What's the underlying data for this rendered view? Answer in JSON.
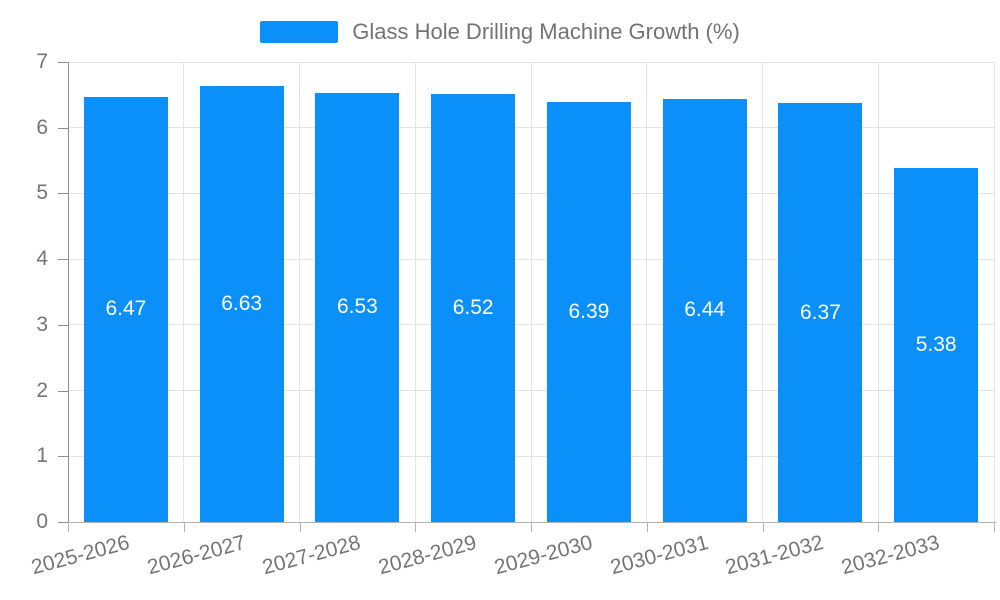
{
  "legend": {
    "position": "top-center",
    "items": [
      {
        "label": "Glass Hole Drilling Machine Growth (%)",
        "color": "#0a90f8"
      }
    ]
  },
  "chart_data": {
    "type": "bar",
    "title": "Glass Hole Drilling Machine Growth (%)",
    "categories": [
      "2025-2026",
      "2026-2027",
      "2027-2028",
      "2028-2029",
      "2029-2030",
      "2030-2031",
      "2031-2032",
      "2032-2033"
    ],
    "values": [
      6.47,
      6.63,
      6.53,
      6.52,
      6.39,
      6.44,
      6.37,
      5.38
    ],
    "value_labels": [
      "6.47",
      "6.63",
      "6.53",
      "6.52",
      "6.39",
      "6.44",
      "6.37",
      "5.38"
    ],
    "xlabel": "",
    "ylabel": "",
    "ylim": [
      0,
      7
    ],
    "yticks": [
      0,
      1,
      2,
      3,
      4,
      5,
      6,
      7
    ],
    "grid": "on",
    "x_label_rotation_deg": -15,
    "legend_position": "top-center",
    "bar_color": "#0a90f8",
    "value_label_color": "#ffffff",
    "value_label_position": "inside-middle"
  },
  "style": {
    "axis_text_color": "#757575",
    "legend_text_color": "#737373",
    "gridline_color": "#e3e3e3",
    "y_axis_line_color": "#8f8f8f",
    "x_axis_line_color": "#b3b3b3",
    "background_color": "#ffffff"
  }
}
